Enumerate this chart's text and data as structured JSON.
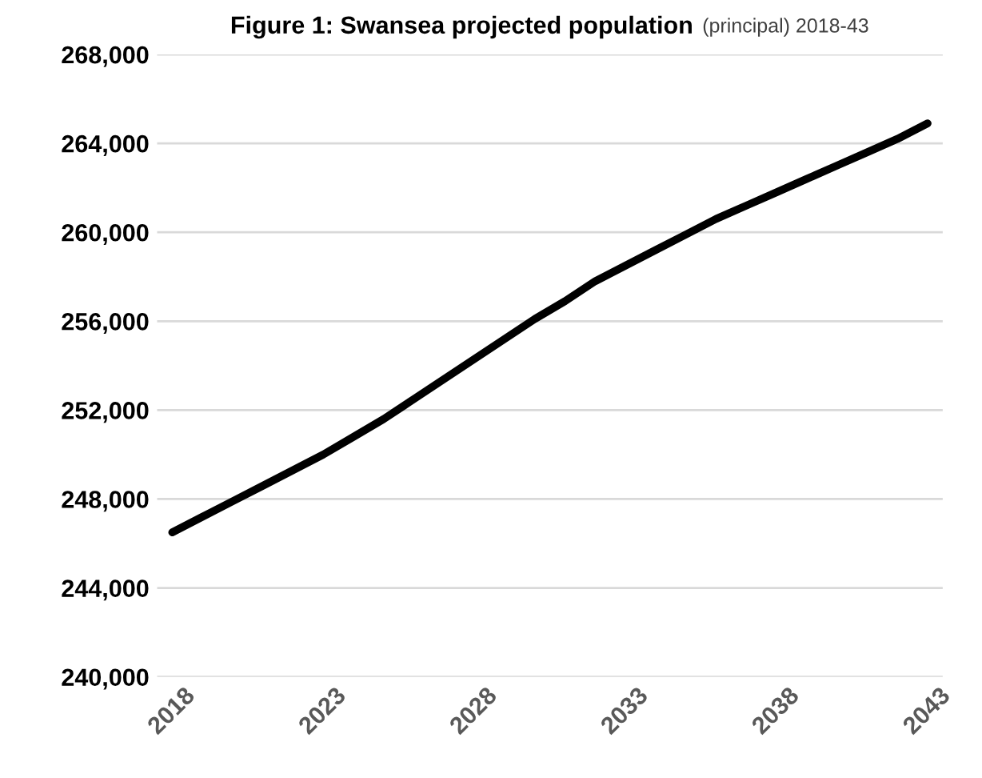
{
  "chart_data": {
    "type": "line",
    "title": "Figure 1: Swansea projected population",
    "subtitle": "(principal) 2018-43",
    "x": [
      2018,
      2019,
      2020,
      2021,
      2022,
      2023,
      2024,
      2025,
      2026,
      2027,
      2028,
      2029,
      2030,
      2031,
      2032,
      2033,
      2034,
      2035,
      2036,
      2037,
      2038,
      2039,
      2040,
      2041,
      2042,
      2043
    ],
    "series": [
      {
        "color": "#000000",
        "values": [
          246500,
          247200,
          247900,
          248600,
          249300,
          250000,
          250800,
          251600,
          252500,
          253400,
          254300,
          255200,
          256100,
          256900,
          257800,
          258500,
          259200,
          259900,
          260600,
          261200,
          261800,
          262400,
          263000,
          263600,
          264200,
          264900
        ]
      }
    ],
    "xlim": [
      2017.5,
      2043.5
    ],
    "xticks": [
      2018,
      2023,
      2028,
      2033,
      2038,
      2043
    ],
    "ylim": [
      240000,
      268000
    ],
    "yticks": [
      {
        "value": 240000,
        "label": "240,000"
      },
      {
        "value": 244000,
        "label": "244,000"
      },
      {
        "value": 248000,
        "label": "248,000"
      },
      {
        "value": 252000,
        "label": "252,000"
      },
      {
        "value": 256000,
        "label": "256,000"
      },
      {
        "value": 260000,
        "label": "260,000"
      },
      {
        "value": 264000,
        "label": "264,000"
      },
      {
        "value": 268000,
        "label": "268,000"
      }
    ],
    "grid": "y",
    "legend": false,
    "marker": "none",
    "line_style": "solid"
  }
}
